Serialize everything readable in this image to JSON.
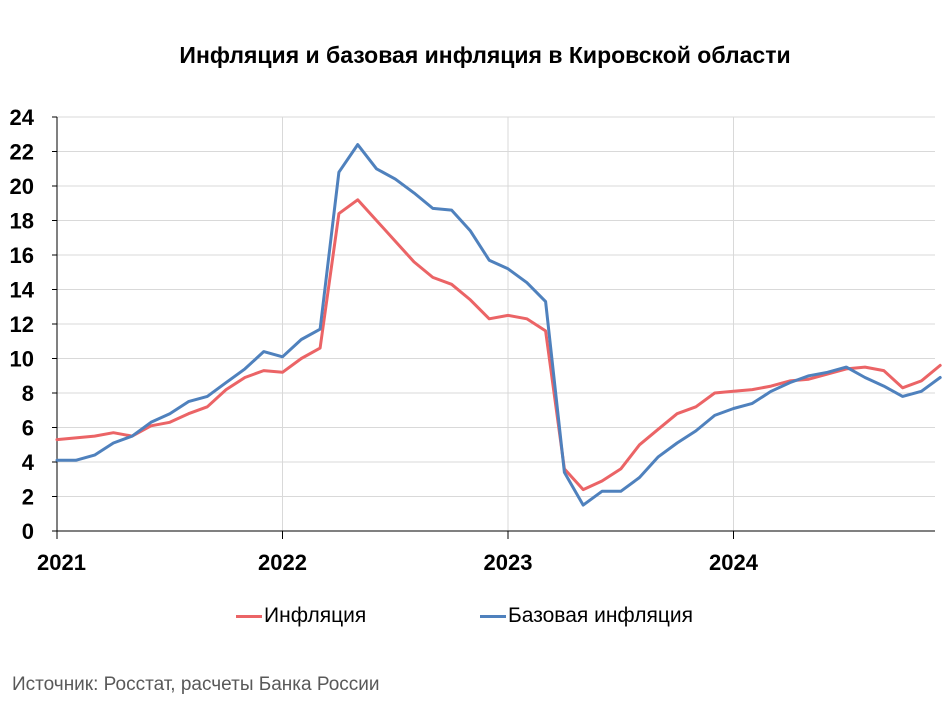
{
  "colors": {
    "inflation": "#eb6466",
    "core": "#4f81bd",
    "grid": "#d9d9d9",
    "axis": "#000000"
  },
  "source": "Источник: Росстат, расчеты Банка России",
  "chart_data": {
    "type": "line",
    "title": "Инфляция и базовая инфляция в Кировской области",
    "ylim": [
      0,
      24
    ],
    "yticks": [
      0,
      2,
      4,
      6,
      8,
      10,
      12,
      14,
      16,
      18,
      20,
      22,
      24
    ],
    "xticks": [
      "2021",
      "2022",
      "2023",
      "2024"
    ],
    "x_start": "2021-01",
    "grid": "vertical at year starts and horizontal at y ticks",
    "legend_position": "bottom",
    "series": [
      {
        "name": "Инфляция",
        "color": "#eb6466",
        "values": [
          5.3,
          5.4,
          5.5,
          5.7,
          5.5,
          6.1,
          6.3,
          6.8,
          7.2,
          8.2,
          8.9,
          9.3,
          9.2,
          10.0,
          10.6,
          18.4,
          19.2,
          18.0,
          16.8,
          15.6,
          14.7,
          14.3,
          13.4,
          12.3,
          12.5,
          12.3,
          11.6,
          3.6,
          2.4,
          2.9,
          3.6,
          5.0,
          5.9,
          6.8,
          7.2,
          8.0,
          8.1,
          8.2,
          8.4,
          8.7,
          8.8,
          9.1,
          9.4,
          9.5,
          9.3,
          8.3,
          8.7,
          9.6
        ]
      },
      {
        "name": "Базовая инфляция",
        "color": "#4f81bd",
        "values": [
          4.1,
          4.1,
          4.4,
          5.1,
          5.5,
          6.3,
          6.8,
          7.5,
          7.8,
          8.6,
          9.4,
          10.4,
          10.1,
          11.1,
          11.7,
          20.8,
          22.4,
          21.0,
          20.4,
          19.6,
          18.7,
          18.6,
          17.4,
          15.7,
          15.2,
          14.4,
          13.3,
          3.4,
          1.5,
          2.3,
          2.3,
          3.1,
          4.3,
          5.1,
          5.8,
          6.7,
          7.1,
          7.4,
          8.1,
          8.6,
          9.0,
          9.2,
          9.5,
          8.9,
          8.4,
          7.8,
          8.1,
          8.9
        ]
      }
    ]
  }
}
